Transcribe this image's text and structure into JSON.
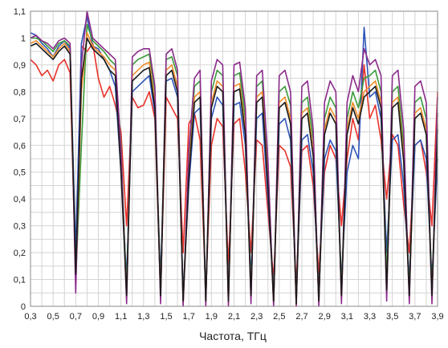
{
  "chart_data": {
    "type": "line",
    "title": "",
    "xlabel": "Частота, ТГц",
    "ylabel": "",
    "xlim": [
      0.3,
      3.9
    ],
    "ylim": [
      0,
      1.1
    ],
    "x_ticks": [
      "0,3",
      "0,5",
      "0,7",
      "0,9",
      "1,1",
      "1,3",
      "1,5",
      "1,7",
      "1,9",
      "2,1",
      "2,3",
      "2,5",
      "2,7",
      "2,9",
      "3,1",
      "3,3",
      "3,5",
      "3,7",
      "3,9"
    ],
    "y_ticks": [
      "0",
      "0,1",
      "0,2",
      "0,3",
      "0,4",
      "0,5",
      "0,6",
      "0,7",
      "0,8",
      "0,9",
      "1",
      "1,1"
    ],
    "grid": true,
    "legend": "none",
    "series": [
      {
        "color": "#e8322a",
        "x": [
          0.3,
          0.35,
          0.4,
          0.45,
          0.5,
          0.55,
          0.6,
          0.65,
          0.7,
          0.75,
          0.8,
          0.85,
          0.9,
          0.95,
          1.0,
          1.05,
          1.1,
          1.15,
          1.2,
          1.25,
          1.3,
          1.35,
          1.4,
          1.45,
          1.5,
          1.55,
          1.6,
          1.65,
          1.7,
          1.75,
          1.8,
          1.85,
          1.9,
          1.95,
          2.0,
          2.05,
          2.1,
          2.15,
          2.2,
          2.25,
          2.3,
          2.35,
          2.4,
          2.45,
          2.5,
          2.55,
          2.6,
          2.65,
          2.7,
          2.75,
          2.8,
          2.85,
          2.9,
          2.95,
          3.0,
          3.05,
          3.1,
          3.15,
          3.2,
          3.25,
          3.3,
          3.35,
          3.4,
          3.45,
          3.5,
          3.55,
          3.6,
          3.65,
          3.7,
          3.75,
          3.8,
          3.85,
          3.9
        ],
        "y": [
          0.92,
          0.9,
          0.86,
          0.88,
          0.84,
          0.9,
          0.92,
          0.87,
          0.12,
          0.97,
          0.95,
          0.98,
          0.85,
          0.78,
          0.82,
          0.75,
          0.65,
          0.3,
          0.78,
          0.74,
          0.75,
          0.8,
          0.7,
          0.05,
          0.78,
          0.74,
          0.7,
          0.2,
          0.68,
          0.72,
          0.62,
          0.05,
          0.6,
          0.7,
          0.67,
          0.15,
          0.68,
          0.7,
          0.5,
          0.2,
          0.62,
          0.6,
          0.35,
          0.1,
          0.6,
          0.58,
          0.52,
          0.08,
          0.58,
          0.6,
          0.45,
          0.12,
          0.5,
          0.6,
          0.55,
          0.3,
          0.55,
          0.7,
          0.62,
          0.9,
          0.7,
          0.75,
          0.62,
          0.4,
          0.64,
          0.6,
          0.38,
          0.2,
          0.6,
          0.62,
          0.5,
          0.3,
          0.8
        ]
      },
      {
        "color": "#2e54b8",
        "x": [
          0.3,
          0.35,
          0.4,
          0.45,
          0.5,
          0.55,
          0.6,
          0.65,
          0.7,
          0.75,
          0.8,
          0.85,
          0.9,
          0.95,
          1.0,
          1.05,
          1.1,
          1.15,
          1.2,
          1.25,
          1.3,
          1.35,
          1.4,
          1.45,
          1.5,
          1.55,
          1.6,
          1.65,
          1.7,
          1.75,
          1.8,
          1.85,
          1.9,
          1.95,
          2.0,
          2.05,
          2.1,
          2.15,
          2.2,
          2.25,
          2.3,
          2.35,
          2.4,
          2.45,
          2.5,
          2.55,
          2.6,
          2.65,
          2.7,
          2.75,
          2.8,
          2.85,
          2.9,
          2.95,
          3.0,
          3.05,
          3.1,
          3.15,
          3.2,
          3.25,
          3.3,
          3.35,
          3.4,
          3.45,
          3.5,
          3.55,
          3.6,
          3.65,
          3.7,
          3.75,
          3.8,
          3.85,
          3.9
        ],
        "y": [
          1.02,
          1.01,
          0.98,
          0.96,
          0.93,
          0.97,
          0.99,
          0.96,
          0.2,
          0.98,
          1.08,
          0.97,
          0.96,
          0.92,
          0.88,
          0.82,
          0.5,
          0.1,
          0.8,
          0.82,
          0.84,
          0.86,
          0.72,
          0.1,
          0.84,
          0.85,
          0.78,
          0.05,
          0.45,
          0.72,
          0.74,
          0.05,
          0.7,
          0.78,
          0.75,
          0.05,
          0.75,
          0.76,
          0.6,
          0.1,
          0.7,
          0.72,
          0.4,
          0.05,
          0.68,
          0.7,
          0.62,
          0.02,
          0.62,
          0.64,
          0.5,
          0.05,
          0.55,
          0.62,
          0.58,
          0.1,
          0.5,
          0.6,
          0.55,
          1.04,
          0.78,
          0.8,
          0.7,
          0.2,
          0.62,
          0.64,
          0.45,
          0.1,
          0.6,
          0.62,
          0.55,
          0.1,
          0.55
        ]
      },
      {
        "color": "#3a9a3a",
        "x": [
          0.3,
          0.35,
          0.4,
          0.45,
          0.5,
          0.55,
          0.6,
          0.65,
          0.7,
          0.75,
          0.8,
          0.85,
          0.9,
          0.95,
          1.0,
          1.05,
          1.1,
          1.15,
          1.2,
          1.25,
          1.3,
          1.35,
          1.4,
          1.45,
          1.5,
          1.55,
          1.6,
          1.65,
          1.7,
          1.75,
          1.8,
          1.85,
          1.9,
          1.95,
          2.0,
          2.05,
          2.1,
          2.15,
          2.2,
          2.25,
          2.3,
          2.35,
          2.4,
          2.45,
          2.5,
          2.55,
          2.6,
          2.65,
          2.7,
          2.75,
          2.8,
          2.85,
          2.9,
          2.95,
          3.0,
          3.05,
          3.1,
          3.15,
          3.2,
          3.25,
          3.3,
          3.35,
          3.4,
          3.45,
          3.5,
          3.55,
          3.6,
          3.65,
          3.7,
          3.75,
          3.8,
          3.85,
          3.9
        ],
        "y": [
          1.0,
          1.0,
          0.99,
          0.97,
          0.95,
          0.98,
          0.99,
          0.97,
          0.1,
          0.6,
          1.05,
          0.99,
          0.97,
          0.95,
          0.92,
          0.9,
          0.6,
          0.05,
          0.9,
          0.92,
          0.93,
          0.94,
          0.8,
          0.05,
          0.92,
          0.93,
          0.86,
          0.02,
          0.55,
          0.82,
          0.84,
          0.02,
          0.8,
          0.88,
          0.86,
          0.02,
          0.86,
          0.87,
          0.7,
          0.05,
          0.82,
          0.84,
          0.5,
          0.02,
          0.8,
          0.82,
          0.75,
          0.01,
          0.76,
          0.78,
          0.62,
          0.02,
          0.7,
          0.78,
          0.74,
          0.05,
          0.7,
          0.8,
          0.74,
          0.85,
          0.86,
          0.88,
          0.8,
          0.1,
          0.8,
          0.82,
          0.6,
          0.05,
          0.76,
          0.78,
          0.7,
          0.05,
          0.72
        ]
      },
      {
        "color": "#f08c2a",
        "x": [
          0.3,
          0.35,
          0.4,
          0.45,
          0.5,
          0.55,
          0.6,
          0.65,
          0.7,
          0.75,
          0.8,
          0.85,
          0.9,
          0.95,
          1.0,
          1.05,
          1.1,
          1.15,
          1.2,
          1.25,
          1.3,
          1.35,
          1.4,
          1.45,
          1.5,
          1.55,
          1.6,
          1.65,
          1.7,
          1.75,
          1.8,
          1.85,
          1.9,
          1.95,
          2.0,
          2.05,
          2.1,
          2.15,
          2.2,
          2.25,
          2.3,
          2.35,
          2.4,
          2.45,
          2.5,
          2.55,
          2.6,
          2.65,
          2.7,
          2.75,
          2.8,
          2.85,
          2.9,
          2.95,
          3.0,
          3.05,
          3.1,
          3.15,
          3.2,
          3.25,
          3.3,
          3.35,
          3.4,
          3.45,
          3.5,
          3.55,
          3.6,
          3.65,
          3.7,
          3.75,
          3.8,
          3.85,
          3.9
        ],
        "y": [
          0.98,
          0.99,
          0.97,
          0.95,
          0.93,
          0.96,
          0.98,
          0.95,
          0.08,
          0.8,
          1.02,
          0.97,
          0.95,
          0.93,
          0.9,
          0.88,
          0.55,
          0.03,
          0.86,
          0.88,
          0.9,
          0.91,
          0.76,
          0.03,
          0.88,
          0.9,
          0.82,
          0.01,
          0.5,
          0.78,
          0.8,
          0.01,
          0.76,
          0.84,
          0.82,
          0.01,
          0.82,
          0.83,
          0.66,
          0.03,
          0.78,
          0.8,
          0.46,
          0.01,
          0.76,
          0.78,
          0.7,
          0.0,
          0.72,
          0.74,
          0.58,
          0.01,
          0.66,
          0.74,
          0.7,
          0.03,
          0.66,
          0.76,
          0.7,
          0.8,
          0.82,
          0.84,
          0.76,
          0.05,
          0.76,
          0.78,
          0.56,
          0.03,
          0.72,
          0.74,
          0.66,
          0.03,
          0.68
        ]
      },
      {
        "color": "#8a2a8a",
        "x": [
          0.3,
          0.35,
          0.4,
          0.45,
          0.5,
          0.55,
          0.6,
          0.65,
          0.7,
          0.75,
          0.8,
          0.85,
          0.9,
          0.95,
          1.0,
          1.05,
          1.1,
          1.15,
          1.2,
          1.25,
          1.3,
          1.35,
          1.4,
          1.45,
          1.5,
          1.55,
          1.6,
          1.65,
          1.7,
          1.75,
          1.8,
          1.85,
          1.9,
          1.95,
          2.0,
          2.05,
          2.1,
          2.15,
          2.2,
          2.25,
          2.3,
          2.35,
          2.4,
          2.45,
          2.5,
          2.55,
          2.6,
          2.65,
          2.7,
          2.75,
          2.8,
          2.85,
          2.9,
          2.95,
          3.0,
          3.05,
          3.1,
          3.15,
          3.2,
          3.25,
          3.3,
          3.35,
          3.4,
          3.45,
          3.5,
          3.55,
          3.6,
          3.65,
          3.7,
          3.75,
          3.8,
          3.85,
          3.9
        ],
        "y": [
          1.0,
          1.01,
          0.99,
          0.98,
          0.96,
          0.99,
          1.0,
          0.98,
          0.05,
          0.9,
          1.1,
          1.0,
          0.98,
          0.96,
          0.94,
          0.92,
          0.58,
          0.01,
          0.93,
          0.95,
          0.96,
          0.96,
          0.82,
          0.01,
          0.94,
          0.96,
          0.88,
          0.0,
          0.58,
          0.85,
          0.88,
          0.0,
          0.84,
          0.92,
          0.9,
          0.0,
          0.9,
          0.91,
          0.74,
          0.01,
          0.86,
          0.88,
          0.54,
          0.0,
          0.86,
          0.88,
          0.8,
          0.0,
          0.82,
          0.84,
          0.66,
          0.0,
          0.76,
          0.84,
          0.8,
          0.01,
          0.76,
          0.86,
          0.8,
          0.96,
          0.9,
          0.92,
          0.86,
          0.02,
          0.86,
          0.88,
          0.66,
          0.01,
          0.82,
          0.84,
          0.76,
          0.01,
          0.78
        ]
      },
      {
        "color": "#1a1a1a",
        "x": [
          0.3,
          0.35,
          0.4,
          0.45,
          0.5,
          0.55,
          0.6,
          0.65,
          0.7,
          0.75,
          0.8,
          0.85,
          0.9,
          0.95,
          1.0,
          1.05,
          1.1,
          1.15,
          1.2,
          1.25,
          1.3,
          1.35,
          1.4,
          1.45,
          1.5,
          1.55,
          1.6,
          1.65,
          1.7,
          1.75,
          1.8,
          1.85,
          1.9,
          1.95,
          2.0,
          2.05,
          2.1,
          2.15,
          2.2,
          2.25,
          2.3,
          2.35,
          2.4,
          2.45,
          2.5,
          2.55,
          2.6,
          2.65,
          2.7,
          2.75,
          2.8,
          2.85,
          2.9,
          2.95,
          3.0,
          3.05,
          3.1,
          3.15,
          3.2,
          3.25,
          3.3,
          3.35,
          3.4,
          3.45,
          3.5,
          3.55,
          3.6,
          3.65,
          3.7,
          3.75,
          3.8,
          3.85,
          3.9
        ],
        "y": [
          0.97,
          0.98,
          0.96,
          0.94,
          0.92,
          0.95,
          0.97,
          0.94,
          0.12,
          0.85,
          1.0,
          0.96,
          0.94,
          0.92,
          0.88,
          0.86,
          0.5,
          0.04,
          0.84,
          0.86,
          0.88,
          0.89,
          0.74,
          0.04,
          0.86,
          0.88,
          0.8,
          0.02,
          0.48,
          0.76,
          0.78,
          0.02,
          0.74,
          0.82,
          0.8,
          0.02,
          0.8,
          0.81,
          0.64,
          0.04,
          0.76,
          0.78,
          0.44,
          0.02,
          0.74,
          0.76,
          0.68,
          0.01,
          0.7,
          0.72,
          0.56,
          0.02,
          0.64,
          0.72,
          0.68,
          0.04,
          0.64,
          0.74,
          0.68,
          0.78,
          0.8,
          0.82,
          0.74,
          0.06,
          0.74,
          0.76,
          0.54,
          0.04,
          0.7,
          0.72,
          0.64,
          0.04,
          0.66
        ]
      }
    ]
  }
}
